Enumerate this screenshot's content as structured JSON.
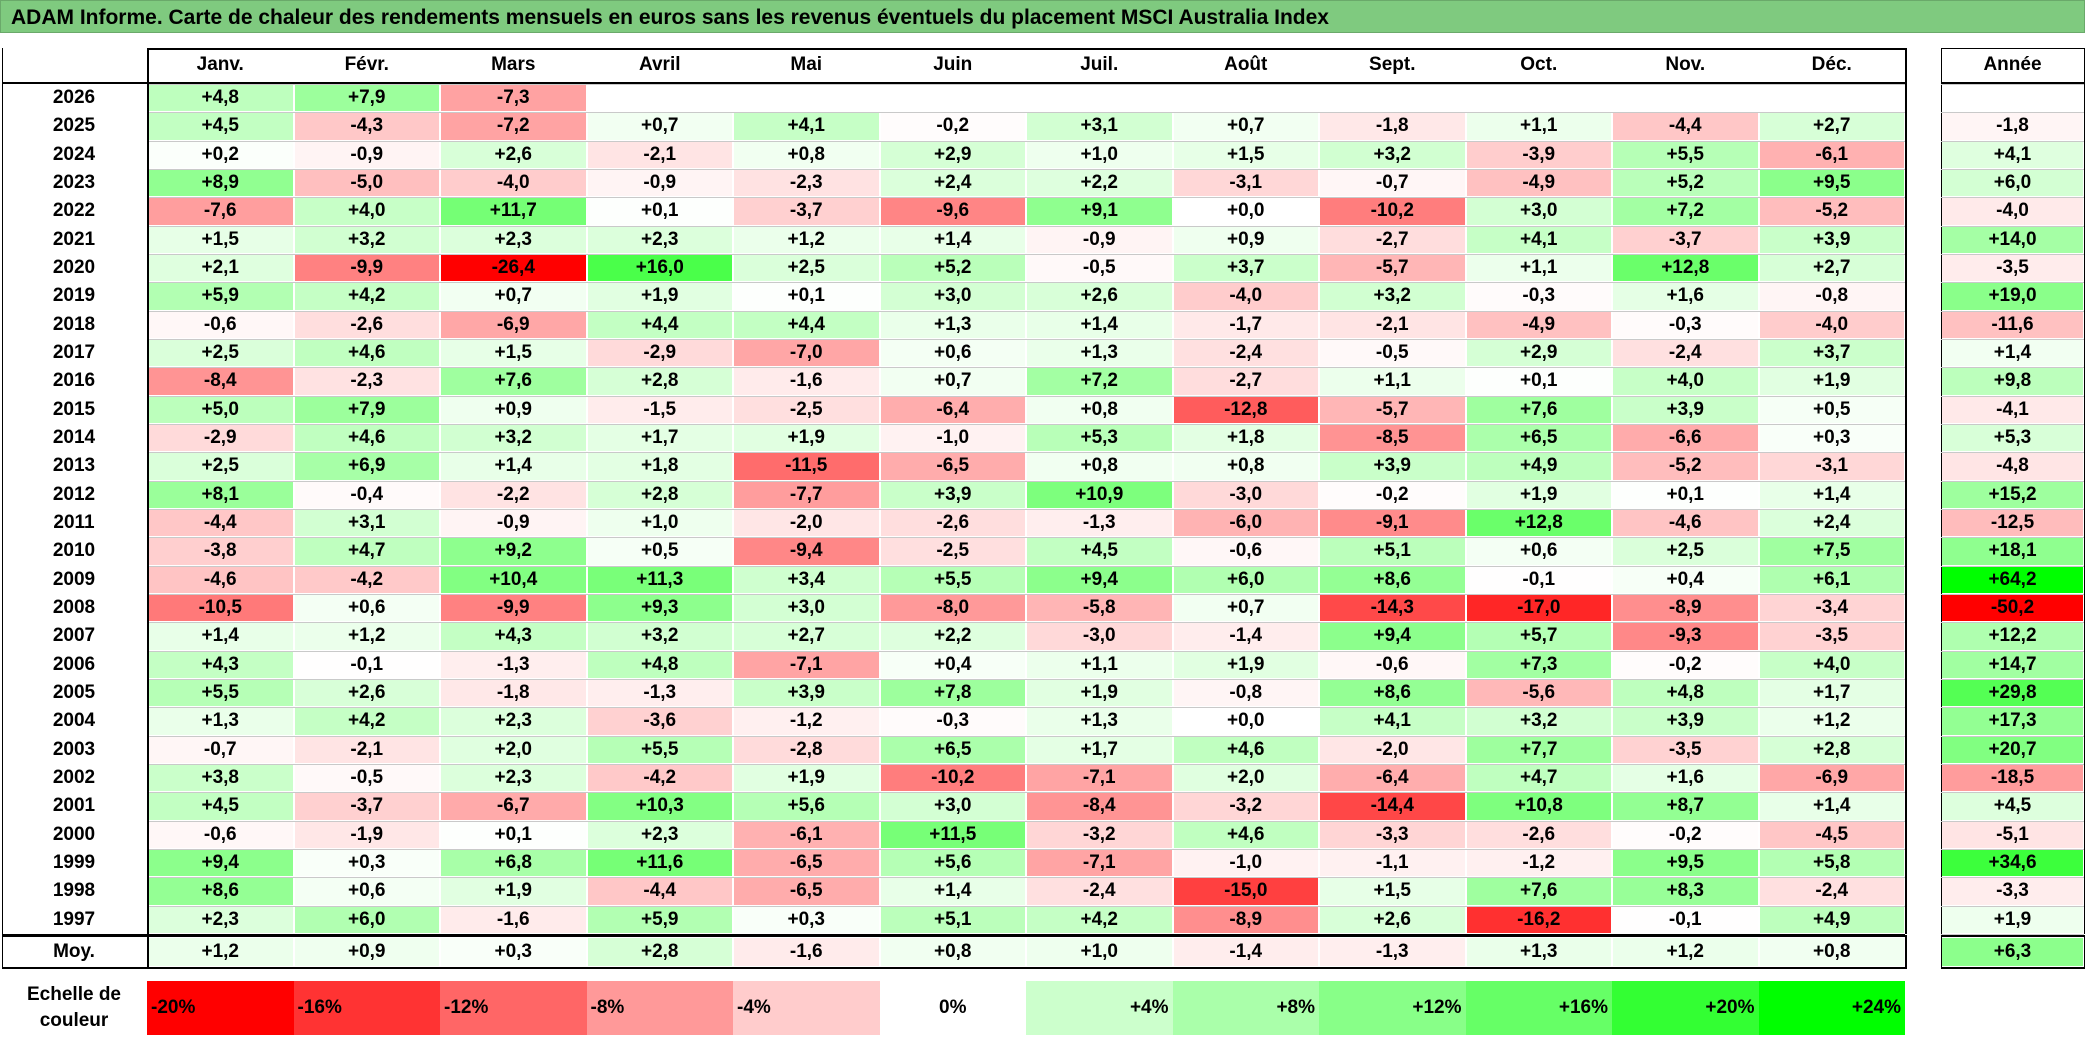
{
  "title": "ADAM Informe. Carte de chaleur des rendements mensuels en euros sans les revenus éventuels du placement MSCI Australia Index",
  "chart_data": {
    "type": "heatmap",
    "title": "ADAM Informe. Carte de chaleur des rendements mensuels en euros sans les revenus éventuels du placement MSCI Australia Index",
    "columns": [
      "Janv.",
      "Févr.",
      "Mars",
      "Avril",
      "Mai",
      "Juin",
      "Juil.",
      "Août",
      "Sept.",
      "Oct.",
      "Nov.",
      "Déc."
    ],
    "year_column_label": "Année",
    "rows": [
      {
        "year": "2026",
        "months": [
          "+4,8",
          "+7,9",
          "-7,3",
          "",
          "",
          "",
          "",
          "",
          "",
          "",
          "",
          ""
        ],
        "annual": ""
      },
      {
        "year": "2025",
        "months": [
          "+4,5",
          "-4,3",
          "-7,2",
          "+0,7",
          "+4,1",
          "-0,2",
          "+3,1",
          "+0,7",
          "-1,8",
          "+1,1",
          "-4,4",
          "+2,7"
        ],
        "annual": "-1,8"
      },
      {
        "year": "2024",
        "months": [
          "+0,2",
          "-0,9",
          "+2,6",
          "-2,1",
          "+0,8",
          "+2,9",
          "+1,0",
          "+1,5",
          "+3,2",
          "-3,9",
          "+5,5",
          "-6,1"
        ],
        "annual": "+4,1"
      },
      {
        "year": "2023",
        "months": [
          "+8,9",
          "-5,0",
          "-4,0",
          "-0,9",
          "-2,3",
          "+2,4",
          "+2,2",
          "-3,1",
          "-0,7",
          "-4,9",
          "+5,2",
          "+9,5"
        ],
        "annual": "+6,0"
      },
      {
        "year": "2022",
        "months": [
          "-7,6",
          "+4,0",
          "+11,7",
          "+0,1",
          "-3,7",
          "-9,6",
          "+9,1",
          "+0,0",
          "-10,2",
          "+3,0",
          "+7,2",
          "-5,2"
        ],
        "annual": "-4,0"
      },
      {
        "year": "2021",
        "months": [
          "+1,5",
          "+3,2",
          "+2,3",
          "+2,3",
          "+1,2",
          "+1,4",
          "-0,9",
          "+0,9",
          "-2,7",
          "+4,1",
          "-3,7",
          "+3,9"
        ],
        "annual": "+14,0"
      },
      {
        "year": "2020",
        "months": [
          "+2,1",
          "-9,9",
          "-26,4",
          "+16,0",
          "+2,5",
          "+5,2",
          "-0,5",
          "+3,7",
          "-5,7",
          "+1,1",
          "+12,8",
          "+2,7"
        ],
        "annual": "-3,5"
      },
      {
        "year": "2019",
        "months": [
          "+5,9",
          "+4,2",
          "+0,7",
          "+1,9",
          "+0,1",
          "+3,0",
          "+2,6",
          "-4,0",
          "+3,2",
          "-0,3",
          "+1,6",
          "-0,8"
        ],
        "annual": "+19,0"
      },
      {
        "year": "2018",
        "months": [
          "-0,6",
          "-2,6",
          "-6,9",
          "+4,4",
          "+4,4",
          "+1,3",
          "+1,4",
          "-1,7",
          "-2,1",
          "-4,9",
          "-0,3",
          "-4,0"
        ],
        "annual": "-11,6"
      },
      {
        "year": "2017",
        "months": [
          "+2,5",
          "+4,6",
          "+1,5",
          "-2,9",
          "-7,0",
          "+0,6",
          "+1,3",
          "-2,4",
          "-0,5",
          "+2,9",
          "-2,4",
          "+3,7"
        ],
        "annual": "+1,4"
      },
      {
        "year": "2016",
        "months": [
          "-8,4",
          "-2,3",
          "+7,6",
          "+2,8",
          "-1,6",
          "+0,7",
          "+7,2",
          "-2,7",
          "+1,1",
          "+0,1",
          "+4,0",
          "+1,9"
        ],
        "annual": "+9,8"
      },
      {
        "year": "2015",
        "months": [
          "+5,0",
          "+7,9",
          "+0,9",
          "-1,5",
          "-2,5",
          "-6,4",
          "+0,8",
          "-12,8",
          "-5,7",
          "+7,6",
          "+3,9",
          "+0,5"
        ],
        "annual": "-4,1"
      },
      {
        "year": "2014",
        "months": [
          "-2,9",
          "+4,6",
          "+3,2",
          "+1,7",
          "+1,9",
          "-1,0",
          "+5,3",
          "+1,8",
          "-8,5",
          "+6,5",
          "-6,6",
          "+0,3"
        ],
        "annual": "+5,3"
      },
      {
        "year": "2013",
        "months": [
          "+2,5",
          "+6,9",
          "+1,4",
          "+1,8",
          "-11,5",
          "-6,5",
          "+0,8",
          "+0,8",
          "+3,9",
          "+4,9",
          "-5,2",
          "-3,1"
        ],
        "annual": "-4,8"
      },
      {
        "year": "2012",
        "months": [
          "+8,1",
          "-0,4",
          "-2,2",
          "+2,8",
          "-7,7",
          "+3,9",
          "+10,9",
          "-3,0",
          "-0,2",
          "+1,9",
          "+0,1",
          "+1,4"
        ],
        "annual": "+15,2"
      },
      {
        "year": "2011",
        "months": [
          "-4,4",
          "+3,1",
          "-0,9",
          "+1,0",
          "-2,0",
          "-2,6",
          "-1,3",
          "-6,0",
          "-9,1",
          "+12,8",
          "-4,6",
          "+2,4"
        ],
        "annual": "-12,5"
      },
      {
        "year": "2010",
        "months": [
          "-3,8",
          "+4,7",
          "+9,2",
          "+0,5",
          "-9,4",
          "-2,5",
          "+4,5",
          "-0,6",
          "+5,1",
          "+0,6",
          "+2,5",
          "+7,5"
        ],
        "annual": "+18,1"
      },
      {
        "year": "2009",
        "months": [
          "-4,6",
          "-4,2",
          "+10,4",
          "+11,3",
          "+3,4",
          "+5,5",
          "+9,4",
          "+6,0",
          "+8,6",
          "-0,1",
          "+0,4",
          "+6,1"
        ],
        "annual": "+64,2"
      },
      {
        "year": "2008",
        "months": [
          "-10,5",
          "+0,6",
          "-9,9",
          "+9,3",
          "+3,0",
          "-8,0",
          "-5,8",
          "+0,7",
          "-14,3",
          "-17,0",
          "-8,9",
          "-3,4"
        ],
        "annual": "-50,2"
      },
      {
        "year": "2007",
        "months": [
          "+1,4",
          "+1,2",
          "+4,3",
          "+3,2",
          "+2,7",
          "+2,2",
          "-3,0",
          "-1,4",
          "+9,4",
          "+5,7",
          "-9,3",
          "-3,5"
        ],
        "annual": "+12,2"
      },
      {
        "year": "2006",
        "months": [
          "+4,3",
          "-0,1",
          "-1,3",
          "+4,8",
          "-7,1",
          "+0,4",
          "+1,1",
          "+1,9",
          "-0,6",
          "+7,3",
          "-0,2",
          "+4,0"
        ],
        "annual": "+14,7"
      },
      {
        "year": "2005",
        "months": [
          "+5,5",
          "+2,6",
          "-1,8",
          "-1,3",
          "+3,9",
          "+7,8",
          "+1,9",
          "-0,8",
          "+8,6",
          "-5,6",
          "+4,8",
          "+1,7"
        ],
        "annual": "+29,8"
      },
      {
        "year": "2004",
        "months": [
          "+1,3",
          "+4,2",
          "+2,3",
          "-3,6",
          "-1,2",
          "-0,3",
          "+1,3",
          "+0,0",
          "+4,1",
          "+3,2",
          "+3,9",
          "+1,2"
        ],
        "annual": "+17,3"
      },
      {
        "year": "2003",
        "months": [
          "-0,7",
          "-2,1",
          "+2,0",
          "+5,5",
          "-2,8",
          "+6,5",
          "+1,7",
          "+4,6",
          "-2,0",
          "+7,7",
          "-3,5",
          "+2,8"
        ],
        "annual": "+20,7"
      },
      {
        "year": "2002",
        "months": [
          "+3,8",
          "-0,5",
          "+2,3",
          "-4,2",
          "+1,9",
          "-10,2",
          "-7,1",
          "+2,0",
          "-6,4",
          "+4,7",
          "+1,6",
          "-6,9"
        ],
        "annual": "-18,5"
      },
      {
        "year": "2001",
        "months": [
          "+4,5",
          "-3,7",
          "-6,7",
          "+10,3",
          "+5,6",
          "+3,0",
          "-8,4",
          "-3,2",
          "-14,4",
          "+10,8",
          "+8,7",
          "+1,4"
        ],
        "annual": "+4,5"
      },
      {
        "year": "2000",
        "months": [
          "-0,6",
          "-1,9",
          "+0,1",
          "+2,3",
          "-6,1",
          "+11,5",
          "-3,2",
          "+4,6",
          "-3,3",
          "-2,6",
          "-0,2",
          "-4,5"
        ],
        "annual": "-5,1"
      },
      {
        "year": "1999",
        "months": [
          "+9,4",
          "+0,3",
          "+6,8",
          "+11,6",
          "-6,5",
          "+5,6",
          "-7,1",
          "-1,0",
          "-1,1",
          "-1,2",
          "+9,5",
          "+5,8"
        ],
        "annual": "+34,6"
      },
      {
        "year": "1998",
        "months": [
          "+8,6",
          "+0,6",
          "+1,9",
          "-4,4",
          "-6,5",
          "+1,4",
          "-2,4",
          "-15,0",
          "+1,5",
          "+7,6",
          "+8,3",
          "-2,4"
        ],
        "annual": "-3,3"
      },
      {
        "year": "1997",
        "months": [
          "+2,3",
          "+6,0",
          "-1,6",
          "+5,9",
          "+0,3",
          "+5,1",
          "+4,2",
          "-8,9",
          "+2,6",
          "-16,2",
          "-0,1",
          "+4,9"
        ],
        "annual": "+1,9"
      }
    ],
    "average": {
      "label": "Moy.",
      "months": [
        "+1,2",
        "+0,9",
        "+0,3",
        "+2,8",
        "-1,6",
        "+0,8",
        "+1,0",
        "-1,4",
        "-1,3",
        "+1,3",
        "+1,2",
        "+0,8"
      ],
      "annual": "+6,3"
    },
    "legend": {
      "label": "Echelle de couleur",
      "stops": [
        "-20%",
        "-16%",
        "-12%",
        "-8%",
        "-4%",
        "0%",
        "+4%",
        "+8%",
        "+12%",
        "+16%",
        "+20%",
        "+24%"
      ],
      "colors": [
        "#ff0000",
        "#ff3333",
        "#ff6666",
        "#ff9999",
        "#ffcccc",
        "#ffffff",
        "#ccffcc",
        "#aaffaa",
        "#88ff88",
        "#66ff66",
        "#33ff33",
        "#00ff00"
      ]
    },
    "colors": {
      "negative_max": "#ff0000",
      "neutral": "#ffffff",
      "positive_max": "#00ff00",
      "title_bg": "#7fca7f"
    }
  }
}
